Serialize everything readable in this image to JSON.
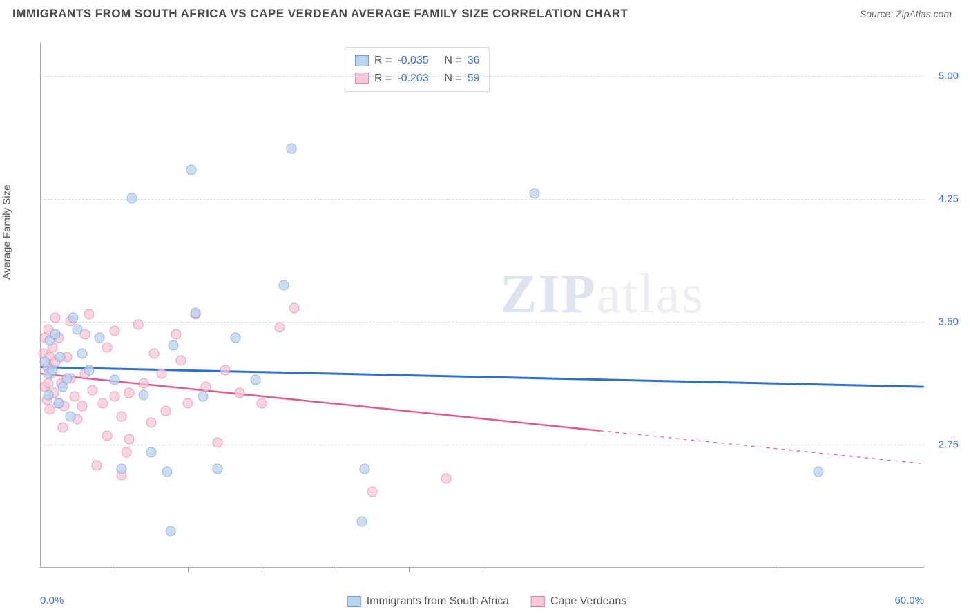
{
  "title": "IMMIGRANTS FROM SOUTH AFRICA VS CAPE VERDEAN AVERAGE FAMILY SIZE CORRELATION CHART",
  "source_label": "Source: ",
  "source_name": "ZipAtlas.com",
  "watermark_a": "ZIP",
  "watermark_b": "atlas",
  "y_axis": {
    "label": "Average Family Size",
    "min": 2.0,
    "max": 5.2,
    "ticks": [
      2.75,
      3.5,
      4.25,
      5.0
    ],
    "tick_labels": [
      "2.75",
      "3.50",
      "4.25",
      "5.00"
    ],
    "tick_color": "#3b6fd6",
    "tick_fontsize": 15
  },
  "x_axis": {
    "min": 0.0,
    "max": 60.0,
    "label_left": "0.0%",
    "label_right": "60.0%",
    "ticks": [
      5,
      10,
      15,
      20,
      25,
      30,
      50
    ],
    "label_color": "#3b6fd6"
  },
  "grid_color": "#dcdcdc",
  "background_color": "#ffffff",
  "axis_color": "#aaaaaa",
  "series": [
    {
      "key": "south_africa",
      "name": "Immigrants from South Africa",
      "fill": "#b9d2f0",
      "stroke": "#6fa0e0",
      "trend_color": "#2e6fd6",
      "trend_width": 3,
      "R": "-0.035",
      "N": "36",
      "trend": {
        "y_at_xmin": 3.22,
        "y_at_xmax": 3.1,
        "x_solid_end": 60.0
      },
      "points": [
        [
          0.3,
          3.25
        ],
        [
          0.5,
          3.18
        ],
        [
          0.5,
          3.05
        ],
        [
          0.6,
          3.38
        ],
        [
          0.8,
          3.2
        ],
        [
          1.0,
          3.42
        ],
        [
          1.2,
          3.0
        ],
        [
          1.3,
          3.28
        ],
        [
          1.5,
          3.1
        ],
        [
          1.8,
          3.15
        ],
        [
          2.0,
          2.92
        ],
        [
          2.2,
          3.52
        ],
        [
          2.5,
          3.45
        ],
        [
          2.8,
          3.3
        ],
        [
          3.3,
          3.2
        ],
        [
          4.0,
          3.4
        ],
        [
          5.0,
          3.14
        ],
        [
          5.5,
          2.6
        ],
        [
          6.2,
          4.25
        ],
        [
          7.0,
          3.05
        ],
        [
          7.5,
          2.7
        ],
        [
          8.6,
          2.58
        ],
        [
          8.8,
          2.22
        ],
        [
          9.0,
          3.35
        ],
        [
          10.2,
          4.42
        ],
        [
          10.5,
          3.55
        ],
        [
          11.0,
          3.04
        ],
        [
          12.0,
          2.6
        ],
        [
          13.2,
          3.4
        ],
        [
          14.6,
          3.14
        ],
        [
          16.5,
          3.72
        ],
        [
          17.0,
          4.55
        ],
        [
          21.8,
          2.28
        ],
        [
          22.0,
          2.6
        ],
        [
          33.5,
          4.28
        ],
        [
          52.8,
          2.58
        ]
      ]
    },
    {
      "key": "cape_verdeans",
      "name": "Cape Verdeans",
      "fill": "#f6c7d6",
      "stroke": "#e67fa5",
      "trend_color": "#e05c8c",
      "trend_width": 2.5,
      "R": "-0.203",
      "N": "59",
      "trend": {
        "y_at_xmin": 3.18,
        "y_at_xmax": 2.63,
        "x_solid_end": 38.0
      },
      "points": [
        [
          0.2,
          3.3
        ],
        [
          0.3,
          3.1
        ],
        [
          0.3,
          3.4
        ],
        [
          0.4,
          3.22
        ],
        [
          0.4,
          3.02
        ],
        [
          0.5,
          3.45
        ],
        [
          0.5,
          3.12
        ],
        [
          0.6,
          3.28
        ],
        [
          0.6,
          2.96
        ],
        [
          0.7,
          3.18
        ],
        [
          0.8,
          3.34
        ],
        [
          0.9,
          3.06
        ],
        [
          1.0,
          3.25
        ],
        [
          1.0,
          3.52
        ],
        [
          1.2,
          3.4
        ],
        [
          1.2,
          3.0
        ],
        [
          1.4,
          3.12
        ],
        [
          1.5,
          2.85
        ],
        [
          1.6,
          2.98
        ],
        [
          1.8,
          3.28
        ],
        [
          2.0,
          3.5
        ],
        [
          2.0,
          3.15
        ],
        [
          2.3,
          3.04
        ],
        [
          2.5,
          2.9
        ],
        [
          2.8,
          2.98
        ],
        [
          3.0,
          3.18
        ],
        [
          3.0,
          3.42
        ],
        [
          3.3,
          3.54
        ],
        [
          3.5,
          3.08
        ],
        [
          3.8,
          2.62
        ],
        [
          4.2,
          3.0
        ],
        [
          4.5,
          3.34
        ],
        [
          4.5,
          2.8
        ],
        [
          5.0,
          3.44
        ],
        [
          5.0,
          3.04
        ],
        [
          5.5,
          2.92
        ],
        [
          5.5,
          2.56
        ],
        [
          5.8,
          2.7
        ],
        [
          6.0,
          2.78
        ],
        [
          6.0,
          3.06
        ],
        [
          6.6,
          3.48
        ],
        [
          7.0,
          3.12
        ],
        [
          7.5,
          2.88
        ],
        [
          7.7,
          3.3
        ],
        [
          8.2,
          3.18
        ],
        [
          8.5,
          2.95
        ],
        [
          9.2,
          3.42
        ],
        [
          9.5,
          3.26
        ],
        [
          10.0,
          3.0
        ],
        [
          10.5,
          3.54
        ],
        [
          11.2,
          3.1
        ],
        [
          12.0,
          2.76
        ],
        [
          12.5,
          3.2
        ],
        [
          13.5,
          3.06
        ],
        [
          15.0,
          3.0
        ],
        [
          16.2,
          3.46
        ],
        [
          17.2,
          3.58
        ],
        [
          22.5,
          2.46
        ],
        [
          27.5,
          2.54
        ]
      ]
    }
  ],
  "stat_legend": {
    "R_label": "R =",
    "N_label": "N ="
  },
  "marker_radius": 7.5,
  "marker_opacity": 0.75
}
